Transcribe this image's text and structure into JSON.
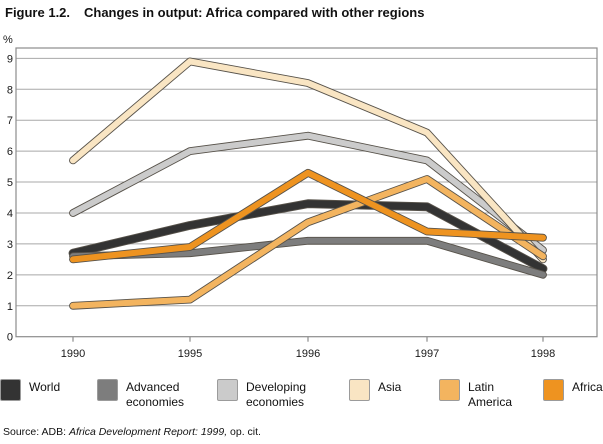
{
  "title": {
    "figure_label": "Figure 1.2.",
    "caption": "Changes in output: Africa compared with other regions"
  },
  "axis": {
    "unit_label": "%"
  },
  "chart_data": {
    "type": "line",
    "title": "Changes in output: Africa compared with other regions",
    "categories": [
      "1990",
      "1995",
      "1996",
      "1997",
      "1998"
    ],
    "xlabel": "",
    "ylabel": "%",
    "ylim": [
      0,
      9
    ],
    "yticks": [
      0,
      1,
      2,
      3,
      4,
      5,
      6,
      7,
      8,
      9
    ],
    "grid": true,
    "legend_position": "bottom",
    "series": [
      {
        "name": "World",
        "values": [
          2.7,
          3.6,
          4.3,
          4.2,
          2.2
        ],
        "color": "#333333",
        "line_width": 7
      },
      {
        "name": "Advanced economies",
        "values": [
          2.6,
          2.7,
          3.1,
          3.1,
          2.0
        ],
        "color": "#7d7d7d",
        "line_width": 6
      },
      {
        "name": "Developing economies",
        "values": [
          4.0,
          6.0,
          6.5,
          5.7,
          2.8
        ],
        "color": "#cbcbcb",
        "line_width": 6
      },
      {
        "name": "Asia",
        "values": [
          5.7,
          8.9,
          8.2,
          6.6,
          2.5
        ],
        "color": "#f9e5c3",
        "line_width": 6
      },
      {
        "name": "Latin America",
        "values": [
          1.0,
          1.2,
          3.7,
          5.1,
          2.6
        ],
        "color": "#f3b45f",
        "line_width": 6
      },
      {
        "name": "Africa",
        "values": [
          2.5,
          2.9,
          5.3,
          3.4,
          3.2
        ],
        "color": "#ee9320",
        "line_width": 6
      }
    ],
    "line_outline_color": "#57524a",
    "grid_color": "#a8a8a8",
    "frame_color": "#8c8c8c",
    "text_color": "#1a1a1a"
  },
  "legend": {
    "items": [
      {
        "line1": "World",
        "line2": ""
      },
      {
        "line1": "Advanced",
        "line2": "economies"
      },
      {
        "line1": "Developing",
        "line2": "economies"
      },
      {
        "line1": "Asia",
        "line2": ""
      },
      {
        "line1": "Latin",
        "line2": "America"
      },
      {
        "line1": "Africa",
        "line2": ""
      }
    ]
  },
  "source": {
    "prefix": "Source: ADB: ",
    "italic_part": "Africa Development Report: 1999,",
    "suffix": " op. cit."
  }
}
